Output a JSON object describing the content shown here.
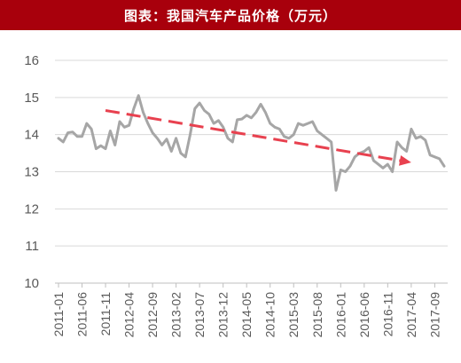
{
  "header": {
    "title": "图表：我国汽车产品价格（万元）"
  },
  "colors": {
    "title_bg": "#a8000c",
    "line": "#a6a6a6",
    "trend": "#e8414f",
    "grid": "#d9d9d9",
    "axis_text": "#595959"
  },
  "chart_data": {
    "type": "line",
    "title": "图表：我国汽车产品价格（万元）",
    "xlabel": "",
    "ylabel": "",
    "ylim": [
      10,
      16
    ],
    "yticks": [
      "10",
      "11",
      "12",
      "13",
      "14",
      "15",
      "16"
    ],
    "grid": true,
    "x_tick_labels": [
      "2011-01",
      "2011-06",
      "2011-11",
      "2012-04",
      "2012-09",
      "2013-02",
      "2013-07",
      "2013-12",
      "2014-05",
      "2014-10",
      "2015-03",
      "2015-08",
      "2016-01",
      "2016-06",
      "2016-11",
      "2017-04",
      "2017-09"
    ],
    "series": [
      {
        "values": [
          13.9,
          13.8,
          14.05,
          14.07,
          13.95,
          13.95,
          14.3,
          14.15,
          13.62,
          13.7,
          13.62,
          14.1,
          13.72,
          14.35,
          14.2,
          14.25,
          14.7,
          15.05,
          14.6,
          14.3,
          14.05,
          13.9,
          13.72,
          13.88,
          13.55,
          13.9,
          13.5,
          13.4,
          14.0,
          14.7,
          14.85,
          14.65,
          14.55,
          14.3,
          14.38,
          14.2,
          13.9,
          13.8,
          14.4,
          14.42,
          14.52,
          14.45,
          14.6,
          14.82,
          14.6,
          14.3,
          14.2,
          14.15,
          13.95,
          13.9,
          14.0,
          14.3,
          14.25,
          14.3,
          14.35,
          14.1,
          14.0,
          13.9,
          13.8,
          12.5,
          13.05,
          13.0,
          13.15,
          13.4,
          13.5,
          13.55,
          13.65,
          13.3,
          13.2,
          13.1,
          13.2,
          13.0,
          13.8,
          13.65,
          13.55,
          14.15,
          13.9,
          13.95,
          13.85,
          13.45,
          13.4,
          13.35,
          13.15
        ]
      }
    ],
    "trend": {
      "from": {
        "x": "2011-11",
        "y": 14.65
      },
      "to": {
        "x": "2017-04",
        "y": 13.25
      }
    }
  }
}
